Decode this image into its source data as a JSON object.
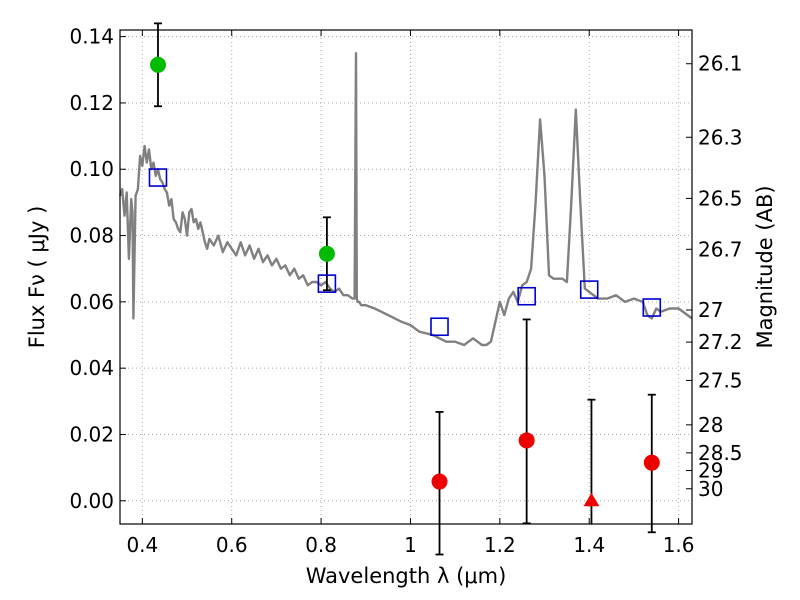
{
  "chart_data": {
    "type": "scatter",
    "xlabel": "Wavelength  λ (μm)",
    "ylabel": "Flux  Fν  ( μJy )",
    "y2label": "Magnitude (AB)",
    "xlim": [
      0.35,
      1.63
    ],
    "ylim": [
      -0.007,
      0.142
    ],
    "grid": true,
    "x_ticks": [
      0.4,
      0.6,
      0.8,
      1.0,
      1.2,
      1.4,
      1.6
    ],
    "x_tick_labels": [
      "0.4",
      "0.6",
      "0.8",
      "1",
      "1.2",
      "1.4",
      "1.6"
    ],
    "y_ticks": [
      0.0,
      0.02,
      0.04,
      0.06,
      0.08,
      0.1,
      0.12,
      0.14
    ],
    "y_tick_labels": [
      "0.00",
      "0.02",
      "0.04",
      "0.06",
      "0.08",
      "0.10",
      "0.12",
      "0.14"
    ],
    "y2_ticks": [
      {
        "label": "26.1",
        "mag": 26.1
      },
      {
        "label": "26.3",
        "mag": 26.3
      },
      {
        "label": "26.5",
        "mag": 26.5
      },
      {
        "label": "26.7",
        "mag": 26.7
      },
      {
        "label": "27",
        "mag": 27.0
      },
      {
        "label": "27.2",
        "mag": 27.2
      },
      {
        "label": "27.5",
        "mag": 27.5
      },
      {
        "label": "28",
        "mag": 28.0
      },
      {
        "label": "28.5",
        "mag": 28.5
      },
      {
        "label": "29",
        "mag": 29.0
      },
      {
        "label": "30",
        "mag": 30.0
      }
    ],
    "colors": {
      "model": "#808080",
      "green": "#00bb00",
      "red": "#ee0000",
      "box": "#0000cc",
      "grid": "#aaaaaa",
      "errorbar": "#000000"
    },
    "series": [
      {
        "kind": "model",
        "x": [
          0.35,
          0.355,
          0.36,
          0.365,
          0.37,
          0.375,
          0.378,
          0.38,
          0.385,
          0.39,
          0.395,
          0.4,
          0.405,
          0.41,
          0.415,
          0.42,
          0.425,
          0.43,
          0.435,
          0.44,
          0.445,
          0.45,
          0.455,
          0.46,
          0.465,
          0.47,
          0.475,
          0.48,
          0.485,
          0.49,
          0.495,
          0.5,
          0.505,
          0.51,
          0.515,
          0.52,
          0.525,
          0.53,
          0.535,
          0.54,
          0.545,
          0.55,
          0.56,
          0.57,
          0.58,
          0.59,
          0.6,
          0.61,
          0.62,
          0.63,
          0.64,
          0.65,
          0.66,
          0.67,
          0.68,
          0.69,
          0.7,
          0.71,
          0.72,
          0.73,
          0.74,
          0.75,
          0.76,
          0.77,
          0.78,
          0.79,
          0.8,
          0.81,
          0.82,
          0.83,
          0.84,
          0.85,
          0.86,
          0.87,
          0.875,
          0.878,
          0.88,
          0.882,
          0.885,
          0.89,
          0.9,
          0.92,
          0.95,
          0.98,
          1.0,
          1.02,
          1.05,
          1.08,
          1.1,
          1.12,
          1.14,
          1.16,
          1.17,
          1.18,
          1.19,
          1.2,
          1.21,
          1.22,
          1.23,
          1.24,
          1.25,
          1.26,
          1.27,
          1.28,
          1.29,
          1.3,
          1.31,
          1.32,
          1.33,
          1.34,
          1.35,
          1.36,
          1.37,
          1.38,
          1.39,
          1.4,
          1.42,
          1.44,
          1.46,
          1.48,
          1.5,
          1.52,
          1.53,
          1.54,
          1.55,
          1.56,
          1.58,
          1.6,
          1.62,
          1.63
        ],
        "y": [
          0.092,
          0.094,
          0.086,
          0.093,
          0.073,
          0.091,
          0.087,
          0.055,
          0.092,
          0.094,
          0.104,
          0.101,
          0.107,
          0.102,
          0.106,
          0.1,
          0.102,
          0.098,
          0.1,
          0.097,
          0.096,
          0.094,
          0.093,
          0.089,
          0.091,
          0.085,
          0.084,
          0.082,
          0.081,
          0.087,
          0.085,
          0.08,
          0.087,
          0.088,
          0.084,
          0.085,
          0.082,
          0.084,
          0.081,
          0.078,
          0.076,
          0.079,
          0.077,
          0.08,
          0.075,
          0.078,
          0.076,
          0.074,
          0.078,
          0.074,
          0.077,
          0.073,
          0.076,
          0.072,
          0.074,
          0.071,
          0.073,
          0.07,
          0.071,
          0.068,
          0.07,
          0.067,
          0.068,
          0.065,
          0.066,
          0.066,
          0.065,
          0.066,
          0.064,
          0.063,
          0.064,
          0.062,
          0.062,
          0.061,
          0.061,
          0.135,
          0.061,
          0.06,
          0.06,
          0.059,
          0.059,
          0.058,
          0.056,
          0.054,
          0.053,
          0.051,
          0.05,
          0.048,
          0.048,
          0.047,
          0.049,
          0.047,
          0.047,
          0.048,
          0.054,
          0.06,
          0.056,
          0.061,
          0.063,
          0.06,
          0.065,
          0.066,
          0.07,
          0.09,
          0.115,
          0.098,
          0.068,
          0.067,
          0.067,
          0.067,
          0.066,
          0.09,
          0.118,
          0.09,
          0.064,
          0.063,
          0.061,
          0.061,
          0.062,
          0.06,
          0.061,
          0.06,
          0.056,
          0.055,
          0.058,
          0.057,
          0.058,
          0.058,
          0.056,
          0.055
        ]
      },
      {
        "kind": "box",
        "name": "",
        "x": [
          0.435,
          0.813,
          1.065,
          1.26,
          1.4,
          1.54
        ],
        "y": [
          0.0975,
          0.0655,
          0.0525,
          0.0617,
          0.0637,
          0.0583
        ]
      },
      {
        "kind": "green",
        "name": "",
        "x": [
          0.435,
          0.813
        ],
        "y": [
          0.1315,
          0.0745
        ],
        "yerr": [
          [
            0.0125,
            0.011
          ],
          [
            0.0125,
            0.011
          ]
        ]
      },
      {
        "kind": "red",
        "name": "",
        "x": [
          1.065,
          1.26,
          1.54
        ],
        "y": [
          0.0058,
          0.0182,
          0.0115
        ],
        "yerr": [
          [
            0.022,
            0.025,
            0.021
          ],
          [
            0.021,
            0.0365,
            0.0205
          ]
        ]
      },
      {
        "kind": "red-upper-limit",
        "name": "",
        "x": [
          1.405
        ],
        "y": [
          0.0
        ],
        "y_top": [
          0.0305
        ],
        "y_bottom": [
          -0.0072
        ]
      }
    ]
  }
}
